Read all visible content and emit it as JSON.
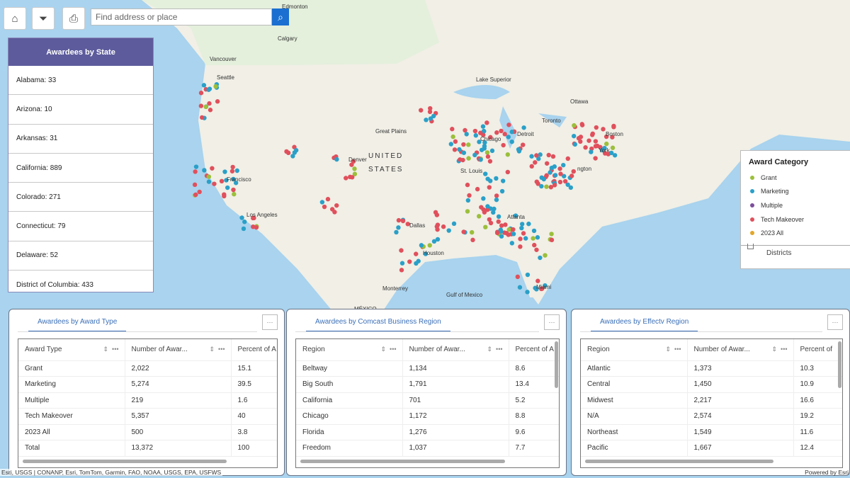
{
  "toolbar": {
    "home": "home-icon",
    "filter": "filter-icon",
    "print": "print-icon",
    "search_placeholder": "Find address or place"
  },
  "states_panel": {
    "title": "Awardees by State",
    "items": [
      "Alabama: 33",
      "Arizona: 10",
      "Arkansas: 31",
      "California: 889",
      "Colorado: 271",
      "Connecticut: 79",
      "Delaware: 52",
      "District of Columbia: 433"
    ]
  },
  "legend": {
    "title": "Award Category",
    "items": [
      {
        "label": "Grant",
        "color": "#9bbf3b"
      },
      {
        "label": "Marketing",
        "color": "#2aa0c8"
      },
      {
        "label": "Multiple",
        "color": "#7c4f9a"
      },
      {
        "label": "Tech Makeover",
        "color": "#e0505c"
      },
      {
        "label": "2023 All",
        "color": "#e0a72a"
      }
    ],
    "layer": "Districts"
  },
  "panels": [
    {
      "tab": "Awardees by Award Type",
      "columns": [
        "Award Type",
        "Number of Awar...",
        "Percent of A"
      ],
      "rows": [
        [
          "Grant",
          "2,022",
          "15.1"
        ],
        [
          "Marketing",
          "5,274",
          "39.5"
        ],
        [
          "Multiple",
          "219",
          "1.6"
        ],
        [
          "Tech Makeover",
          "5,357",
          "40"
        ],
        [
          "2023 All",
          "500",
          "3.8"
        ],
        [
          "Total",
          "13,372",
          "100"
        ]
      ]
    },
    {
      "tab": "Awardees by Comcast Business Region",
      "columns": [
        "Region",
        "Number of Awar...",
        "Percent of A"
      ],
      "rows": [
        [
          "Beltway",
          "1,134",
          "8.6"
        ],
        [
          "Big South",
          "1,791",
          "13.4"
        ],
        [
          "California",
          "701",
          "5.2"
        ],
        [
          "Chicago",
          "1,172",
          "8.8"
        ],
        [
          "Florida",
          "1,276",
          "9.6"
        ],
        [
          "Freedom",
          "1,037",
          "7.7"
        ]
      ]
    },
    {
      "tab": "Awardees by Effectv Region",
      "columns": [
        "Region",
        "Number of Awar...",
        "Percent of"
      ],
      "rows": [
        [
          "Atlantic",
          "1,373",
          "10.3"
        ],
        [
          "Central",
          "1,450",
          "10.9"
        ],
        [
          "Midwest",
          "2,217",
          "16.6"
        ],
        [
          "N/A",
          "2,574",
          "19.2"
        ],
        [
          "Northeast",
          "1,549",
          "11.6"
        ],
        [
          "Pacific",
          "1,667",
          "12.4"
        ]
      ]
    }
  ],
  "map": {
    "labels": [
      "Edmonton",
      "Calgary",
      "Vancouver",
      "Seattle",
      "Francisco",
      "Los Angeles",
      "Denver",
      "UNITED",
      "STATES",
      "Great Plains",
      "Lake Superior",
      "Ottawa",
      "Toronto",
      "Detroit",
      "Chicago",
      "St. Louis",
      "Boston",
      "York",
      "ngton",
      "Dallas",
      "Houston",
      "Atlanta",
      "Miami",
      "Monterrey",
      "Gulf of Mexico",
      "MÉXICO"
    ]
  },
  "attribution": "Esri, USGS | CONANP, Esri, TomTom, Garmin, FAO, NOAA, USGS, EPA, USFWS",
  "powered": "Powered by Esri"
}
